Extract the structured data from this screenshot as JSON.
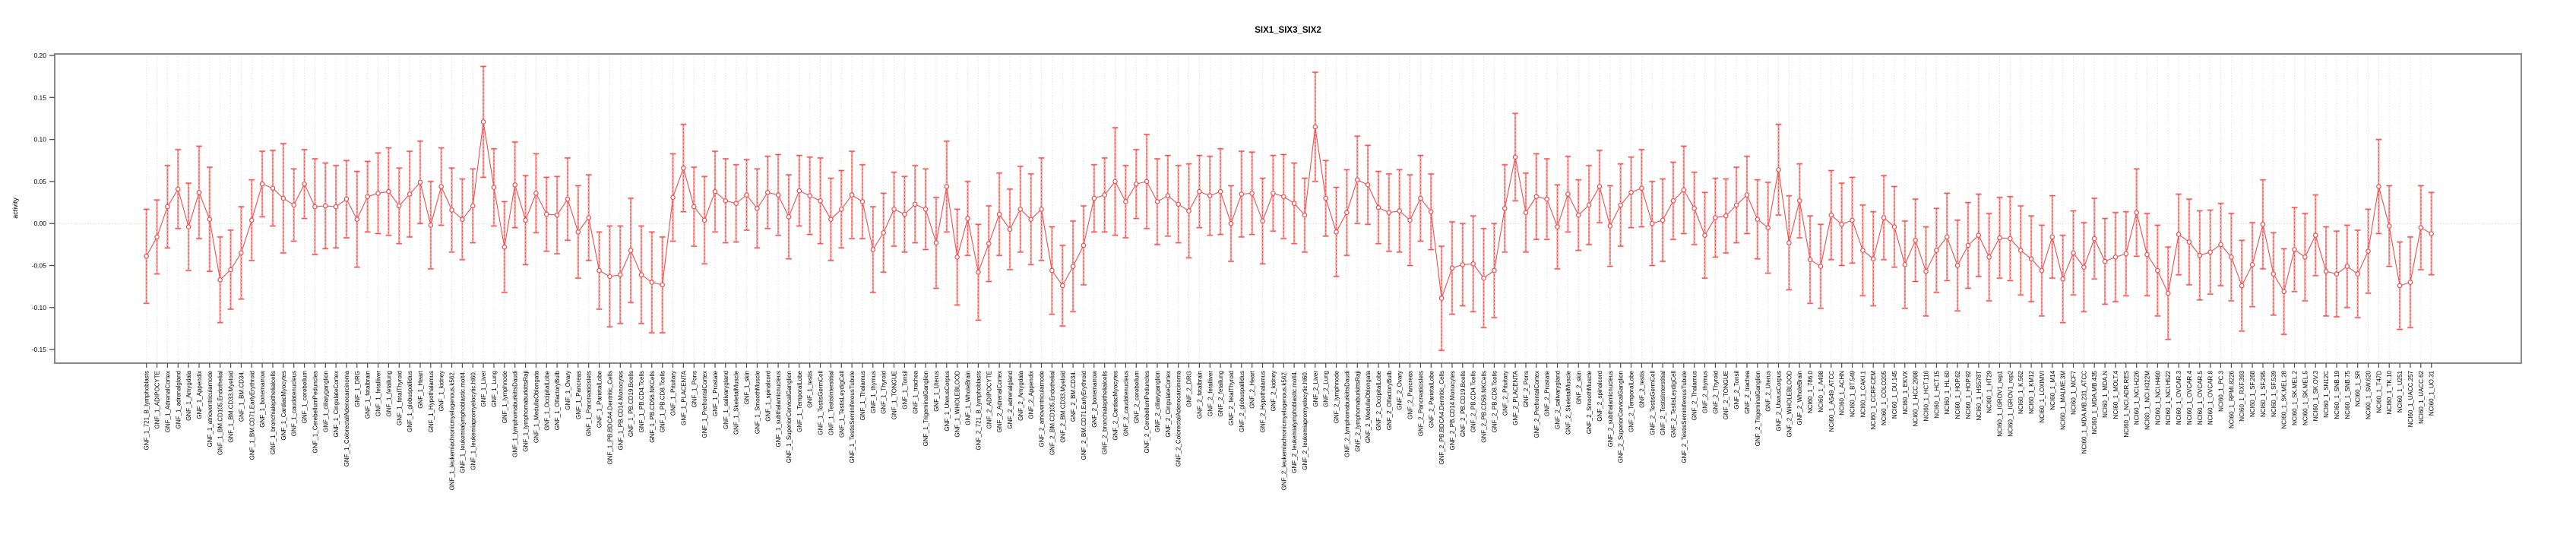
{
  "chart_data": {
    "type": "line",
    "title": "SIX1_SIX3_SIX2",
    "ylabel": "activity",
    "xlabel": "",
    "ylim": [
      -0.166,
      0.2
    ],
    "yticks": [
      0.2,
      0.15,
      0.1,
      0.05,
      0.0,
      -0.05,
      -0.1,
      -0.15
    ],
    "ytick_labels": [
      "0.20",
      "0.15",
      "0.10",
      "0.05",
      "0.00",
      "-0.05",
      "-0.10",
      "-0.15"
    ],
    "grid": "vertical dotted gridline at every category; dotted horizontal line at 0",
    "legend": "none",
    "marker": "open-circle",
    "style": "means connected by red line, dashed red error-bar spines, light salmon whiskers with caps",
    "colors": {
      "point": "#f04e4e",
      "line": "#f04e4e",
      "errorbar_light": "#f9a2a0",
      "errorbar_dashed": "#f04e4e",
      "gridline": "#d9d9d9",
      "zero_line": "#c9c9c9",
      "box_border": "#8a8a8a",
      "tick": "#4d4d4d",
      "text": "#000000"
    },
    "categories": [
      "GNF_1_721_B_lymphoblasts",
      "GNF_1_ADIPOCYTE",
      "GNF_1_AdrenalCortex",
      "GNF_1_adrenalgland",
      "GNF_1_Amygdala",
      "GNF_1_Appendix",
      "GNF_1_atrioventricularnode",
      "GNF_1_BM.CD105.Endothelial",
      "GNF_1_BM.CD33.Myeloid",
      "GNF_1_BM.CD34.",
      "GNF_1_BM.CD71.EarlyErythroid",
      "GNF_1_bonemarrow",
      "GNF_1_bronchialepithelialcells",
      "GNF_1_CardiacMyocytes",
      "GNF_1_caudatenucleus",
      "GNF_1_cerebellum",
      "GNF_1_CerebellumPeduncles",
      "GNF_1_ciliaryganglion",
      "GNF_1_CingulateCortex",
      "GNF_1_ColorectalAdenocarcinoma",
      "GNF_1_DRG",
      "GNF_1_fetalbrain",
      "GNF_1_fetalliver",
      "GNF_1_fetallung",
      "GNF_1_fetalThyroid",
      "GNF_1_globuspallidus",
      "GNF_1_Heart",
      "GNF_1_Hypothalamus",
      "GNF_1_kidney",
      "GNF_1_leukemiachronicmyelogenous.k562.",
      "GNF_1_leukemialymphoblastic.molt4.",
      "GNF_1_leukemiapromyelocytic.hl60.",
      "GNF_1_Liver",
      "GNF_1_Lung",
      "GNF_1_lymphnode",
      "GNF_1_lymphomaburkittsDaudi",
      "GNF_1_lymphomaburkittsRaji",
      "GNF_1_MedullaOblongata",
      "GNF_1_OccipitalLobe",
      "GNF_1_OlfactoryBulb",
      "GNF_1_Ovary",
      "GNF_1_Pancreas",
      "GNF_1_Pancreaticislets",
      "GNF_1_ParietalLobe",
      "GNF_1_PB.BDCA4.Dentritic_Cells",
      "GNF_1_PB.CD14.Monocytes",
      "GNF_1_PB.CD19.Bcells",
      "GNF_1_PB.CD4.Tcells",
      "GNF_1_PB.CD56.NKCells",
      "GNF_1_PB.CD8.Tcells",
      "GNF_1_Pituitary",
      "GNF_1_PLACENTA",
      "GNF_1_Pons",
      "GNF_1_PrefrontalCortex",
      "GNF_1_Prostate",
      "GNF_1_salivarygland",
      "GNF_1_SkeletalMuscle",
      "GNF_1_skin",
      "GNF_1_SmoothMuscle",
      "GNF_1_spinalcord",
      "GNF_1_subthalamicnucleus",
      "GNF_1_SuperiorCervicalGanglion",
      "GNF_1_TemporalLobe",
      "GNF_1_testis",
      "GNF_1_TestisGermCell",
      "GNF_1_TestisInterstitial",
      "GNF_1_TestisLeydigCell",
      "GNF_1_TestisSeminiferousTubule",
      "GNF_1_Thalamus",
      "GNF_1_thymus",
      "GNF_1_Thyroid",
      "GNF_1_TONGUE",
      "GNF_1_Tonsil",
      "GNF_1_trachea",
      "GNF_1_TrigeminalGanglion",
      "GNF_1_Uterus",
      "GNF_1_UterusCorpus",
      "GNF_1_WHOLEBLOOD",
      "GNF_1_WholeBrain",
      "GNF_2_721_B_lymphoblasts",
      "GNF_2_ADIPOCYTE",
      "GNF_2_AdrenalCortex",
      "GNF_2_adrenalgland",
      "GNF_2_Amygdala",
      "GNF_2_Appendix",
      "GNF_2_atrioventricularnode",
      "GNF_2_BM.CD105.Endothelial",
      "GNF_2_BM.CD33.Myeloid",
      "GNF_2_BM.CD34.",
      "GNF_2_BM.CD71.EarlyErythroid",
      "GNF_2_bonemarrow",
      "GNF_2_bronchialepithelialcells",
      "GNF_2_CardiacMyocytes",
      "GNF_2_caudatenucleus",
      "GNF_2_cerebellum",
      "GNF_2_CerebellumPeduncles",
      "GNF_2_ciliaryganglion",
      "GNF_2_CingulateCortex",
      "GNF_2_ColorectalAdenocarcinoma",
      "GNF_2_DRG",
      "GNF_2_fetalbrain",
      "GNF_2_fetalliver",
      "GNF_2_fetallung",
      "GNF_2_fetalThyroid",
      "GNF_2_globuspallidus",
      "GNF_2_Heart",
      "GNF_2_Hypothalamus",
      "GNF_2_kidney",
      "GNF_2_leukemiachronicmyelogenous.k562.",
      "GNF_2_leukemialymphoblastic.molt4.",
      "GNF_2_leukemiapromyelocytic.hl60.",
      "GNF_2_Liver",
      "GNF_2_Lung",
      "GNF_2_lymphnode",
      "GNF_2_lymphomaburkittsDaudi",
      "GNF_2_lymphomaburkittsRaji",
      "GNF_2_MedullaOblongata",
      "GNF_2_OccipitalLobe",
      "GNF_2_OlfactoryBulb",
      "GNF_2_Ovary",
      "GNF_2_Pancreas",
      "GNF_2_Pancreaticislets",
      "GNF_2_ParietalLobe",
      "GNF_2_PB.BDCA4.Dentritic_Cells",
      "GNF_2_PB.CD14.Monocytes",
      "GNF_2_PB.CD19.Bcells",
      "GNF_2_PB.CD4.Tcells",
      "GNF_2_PB.CD56.NKCells",
      "GNF_2_PB.CD8.Tcells",
      "GNF_2_Pituitary",
      "GNF_2_PLACENTA",
      "GNF_2_Pons",
      "GNF_2_PrefrontalCortex",
      "GNF_2_Prostate",
      "GNF_2_salivarygland",
      "GNF_2_SkeletalMuscle",
      "GNF_2_skin",
      "GNF_2_SmoothMuscle",
      "GNF_2_spinalcord",
      "GNF_2_subthalamicnucleus",
      "GNF_2_SuperiorCervicalGanglion",
      "GNF_2_TemporalLobe",
      "GNF_2_testis",
      "GNF_2_TestisGermCell",
      "GNF_2_TestisInterstitial",
      "GNF_2_TestisLeydigCell",
      "GNF_2_TestisSeminiferousTubule",
      "GNF_2_Thalamus",
      "GNF_2_thymus",
      "GNF_2_Thyroid",
      "GNF_2_TONGUE",
      "GNF_2_Tonsil",
      "GNF_2_trachea",
      "GNF_2_TrigeminalGanglion",
      "GNF_2_Uterus",
      "GNF_2_UterusCorpus",
      "GNF_2_WHOLEBLOOD",
      "GNF_2_WholeBrain",
      "NCI60_1_786.0",
      "NCI60_1_A498",
      "NCI60_1_A549_ATCC",
      "NCI60_1_ACHN",
      "NCI60_1_BT.549",
      "NCI60_1_CAKI.1",
      "NCI60_1_CCRF.CEM",
      "NCI60_1_COLO205",
      "NCI60_1_DU.145",
      "NCI60_1_EKVX",
      "NCI60_1_HCC.2998",
      "NCI60_1_HCT.116",
      "NCI60_1_HCT.15",
      "NCI60_1_HL.60",
      "NCI60_1_HOP.62",
      "NCI60_1_HOP.92",
      "NCI60_1_HS578T",
      "NCI60_1_HT29",
      "NCI60_1_IGROV1_rep1",
      "NCI60_1_IGROV1_rep2",
      "NCI60_1_K.562",
      "NCI60_1_KM12",
      "NCI60_1_LOXIMVI",
      "NCI60_1_M14",
      "NCI60_1_MALME.3M",
      "NCI60_1_MCF7",
      "NCI60_1_MDA.MB.231_ATCC",
      "NCI60_1_MDA.MB.435",
      "NCI60_1_MDA.N",
      "NCI60_1_MOLT.4",
      "NCI60_1_NCI.ADR.RES",
      "NCI60_1_NCI.H226",
      "NCI60_1_NCI.H322M",
      "NCI60_1_NCI.H460",
      "NCI60_1_NCI.H522",
      "NCI60_1_OVCAR.3",
      "NCI60_1_OVCAR.4",
      "NCI60_1_OVCAR.5",
      "NCI60_1_OVCAR.8",
      "NCI60_1_PC.3",
      "NCI60_1_RPMI.8226",
      "NCI60_1_RXF.393",
      "NCI60_1_SF.268",
      "NCI60_1_SF.295",
      "NCI60_1_SF.539",
      "NCI60_1_SK.MEL.28",
      "NCI60_1_SK.MEL.2",
      "NCI60_1_SK.MEL.5",
      "NCI60_1_SK.OV.3",
      "NCI60_1_SN12C",
      "NCI60_1_SNB.19",
      "NCI60_1_SNB.75",
      "NCI60_1_SR",
      "NCI60_1_SW.620",
      "NCI60_1_T47D",
      "NCI60_1_TK.10",
      "NCI60_1_U251",
      "NCI60_1_UACC.257",
      "NCI60_1_UACC.62",
      "NCI60_1_UO.31"
    ],
    "values": [
      -0.039,
      -0.016,
      0.02,
      0.041,
      -0.004,
      0.037,
      0.005,
      -0.067,
      -0.055,
      -0.035,
      0.004,
      0.047,
      0.042,
      0.03,
      0.022,
      0.047,
      0.02,
      0.021,
      0.02,
      0.029,
      0.005,
      0.032,
      0.036,
      0.038,
      0.021,
      0.035,
      0.049,
      -0.002,
      0.044,
      0.016,
      0.005,
      0.021,
      0.121,
      0.043,
      -0.028,
      0.046,
      0.004,
      0.036,
      0.011,
      0.01,
      0.029,
      -0.01,
      0.007,
      -0.056,
      -0.063,
      -0.061,
      -0.032,
      -0.061,
      -0.07,
      -0.073,
      0.031,
      0.066,
      0.02,
      0.004,
      0.038,
      0.027,
      0.024,
      0.034,
      0.018,
      0.037,
      0.034,
      0.008,
      0.039,
      0.033,
      0.027,
      0.005,
      0.017,
      0.034,
      0.026,
      -0.031,
      -0.011,
      0.017,
      0.011,
      0.023,
      0.017,
      -0.023,
      0.044,
      -0.04,
      0.006,
      -0.058,
      -0.024,
      0.011,
      -0.007,
      0.017,
      0.005,
      0.017,
      -0.056,
      -0.074,
      -0.051,
      -0.026,
      0.03,
      0.034,
      0.05,
      0.026,
      0.047,
      0.05,
      0.026,
      0.033,
      0.023,
      0.015,
      0.038,
      0.033,
      0.038,
      0.0,
      0.035,
      0.036,
      0.003,
      0.036,
      0.032,
      0.024,
      0.01,
      0.115,
      0.03,
      -0.01,
      0.013,
      0.052,
      0.046,
      0.019,
      0.013,
      0.015,
      0.004,
      0.03,
      0.014,
      -0.089,
      -0.053,
      -0.049,
      -0.048,
      -0.065,
      -0.056,
      0.018,
      0.079,
      0.013,
      0.032,
      0.029,
      -0.004,
      0.035,
      0.01,
      0.022,
      0.044,
      -0.003,
      0.022,
      0.037,
      0.042,
      0.0,
      0.004,
      0.027,
      0.04,
      0.018,
      -0.014,
      0.007,
      0.009,
      0.022,
      0.034,
      0.005,
      -0.005,
      0.064,
      -0.023,
      0.027,
      -0.043,
      -0.051,
      0.01,
      -0.001,
      0.004,
      -0.032,
      -0.042,
      0.007,
      -0.004,
      -0.049,
      -0.02,
      -0.057,
      -0.032,
      -0.016,
      -0.05,
      -0.026,
      -0.014,
      -0.04,
      -0.017,
      -0.018,
      -0.032,
      -0.042,
      -0.056,
      -0.016,
      -0.066,
      -0.035,
      -0.052,
      -0.018,
      -0.045,
      -0.04,
      -0.036,
      0.013,
      -0.037,
      -0.056,
      -0.083,
      -0.013,
      -0.022,
      -0.038,
      -0.034,
      -0.025,
      -0.04,
      -0.074,
      -0.049,
      -0.001,
      -0.06,
      -0.081,
      -0.031,
      -0.04,
      -0.014,
      -0.057,
      -0.06,
      -0.051,
      -0.06,
      -0.033,
      0.044,
      -0.003,
      -0.074,
      -0.07,
      -0.005,
      -0.012
    ],
    "errors": [
      0.056,
      0.044,
      0.049,
      0.047,
      0.052,
      0.055,
      0.062,
      0.051,
      0.047,
      0.055,
      0.048,
      0.039,
      0.045,
      0.065,
      0.043,
      0.041,
      0.057,
      0.051,
      0.049,
      0.046,
      0.057,
      0.042,
      0.048,
      0.052,
      0.045,
      0.051,
      0.049,
      0.052,
      0.046,
      0.05,
      0.048,
      0.044,
      0.066,
      0.046,
      0.054,
      0.051,
      0.053,
      0.047,
      0.044,
      0.046,
      0.049,
      0.055,
      0.051,
      0.046,
      0.06,
      0.058,
      0.062,
      0.058,
      0.06,
      0.057,
      0.052,
      0.052,
      0.047,
      0.052,
      0.048,
      0.05,
      0.046,
      0.042,
      0.047,
      0.043,
      0.048,
      0.05,
      0.042,
      0.046,
      0.051,
      0.049,
      0.046,
      0.052,
      0.044,
      0.051,
      0.047,
      0.044,
      0.045,
      0.046,
      0.048,
      0.054,
      0.054,
      0.057,
      0.044,
      0.057,
      0.045,
      0.049,
      0.048,
      0.051,
      0.054,
      0.061,
      0.052,
      0.048,
      0.054,
      0.047,
      0.04,
      0.044,
      0.064,
      0.043,
      0.041,
      0.056,
      0.051,
      0.048,
      0.046,
      0.056,
      0.043,
      0.047,
      0.051,
      0.045,
      0.051,
      0.049,
      0.051,
      0.045,
      0.05,
      0.048,
      0.044,
      0.065,
      0.045,
      0.053,
      0.051,
      0.052,
      0.047,
      0.043,
      0.046,
      0.049,
      0.054,
      0.051,
      0.045,
      0.062,
      0.055,
      0.049,
      0.057,
      0.059,
      0.056,
      0.052,
      0.052,
      0.047,
      0.051,
      0.048,
      0.05,
      0.045,
      0.042,
      0.047,
      0.043,
      0.048,
      0.049,
      0.042,
      0.046,
      0.05,
      0.049,
      0.046,
      0.052,
      0.043,
      0.051,
      0.047,
      0.044,
      0.045,
      0.046,
      0.047,
      0.054,
      0.054,
      0.056,
      0.044,
      0.052,
      0.05,
      0.053,
      0.049,
      0.051,
      0.054,
      0.056,
      0.05,
      0.048,
      0.052,
      0.049,
      0.053,
      0.05,
      0.052,
      0.054,
      0.051,
      0.049,
      0.052,
      0.048,
      0.05,
      0.053,
      0.051,
      0.054,
      0.049,
      0.052,
      0.05,
      0.053,
      0.048,
      0.051,
      0.053,
      0.05,
      0.052,
      0.049,
      0.054,
      0.055,
      0.048,
      0.051,
      0.053,
      0.05,
      0.049,
      0.052,
      0.054,
      0.05,
      0.053,
      0.049,
      0.051,
      0.05,
      0.052,
      0.048,
      0.053,
      0.051,
      0.049,
      0.052,
      0.05,
      0.056,
      0.048,
      0.052,
      0.054,
      0.05,
      0.049
    ]
  }
}
